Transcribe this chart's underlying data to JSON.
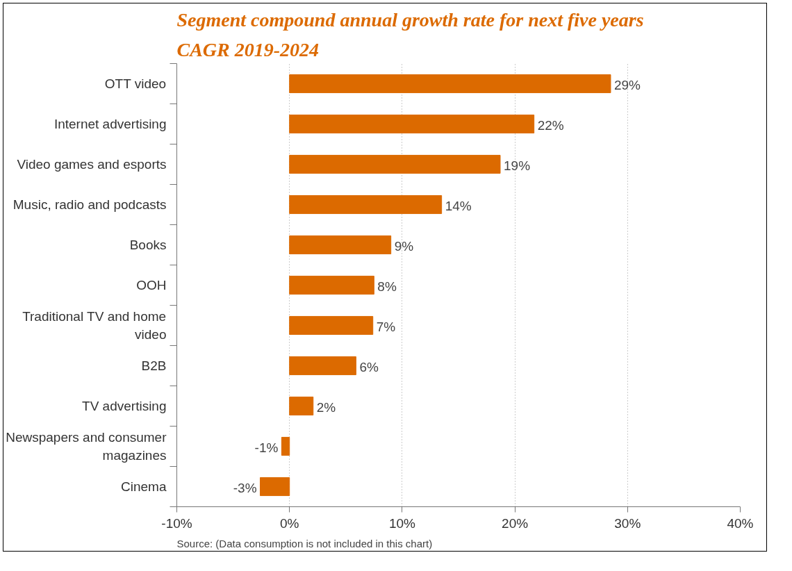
{
  "chart_data": {
    "type": "bar",
    "orientation": "horizontal",
    "title": "Segment compound annual growth rate for next five years",
    "subtitle": "CAGR 2019-2024",
    "categories": [
      "OTT video",
      "Internet advertising",
      "Video games and esports",
      "Music, radio and podcasts",
      "Books",
      "OOH",
      "Traditional TV and home video",
      "B2B",
      "TV advertising",
      "Newspapers and consumer magazines",
      "Cinema"
    ],
    "values": [
      28.5,
      21.7,
      18.7,
      13.5,
      9.0,
      7.5,
      7.4,
      5.9,
      2.1,
      -0.7,
      -2.6
    ],
    "value_labels": [
      "29%",
      "22%",
      "19%",
      "14%",
      "9%",
      "8%",
      "7%",
      "6%",
      "2%",
      "-1%",
      "-3%"
    ],
    "color": "#dc6a00",
    "xlim": [
      -10,
      40
    ],
    "xticks": [
      {
        "value": -10,
        "label": "-10%"
      },
      {
        "value": 0,
        "label": "0%"
      },
      {
        "value": 10,
        "label": "10%"
      },
      {
        "value": 20,
        "label": "20%"
      },
      {
        "value": 30,
        "label": "30%"
      },
      {
        "value": 40,
        "label": "40%"
      }
    ],
    "grid": "x",
    "annotations": [
      "Source: (Data consumption is not included in this chart)"
    ]
  }
}
